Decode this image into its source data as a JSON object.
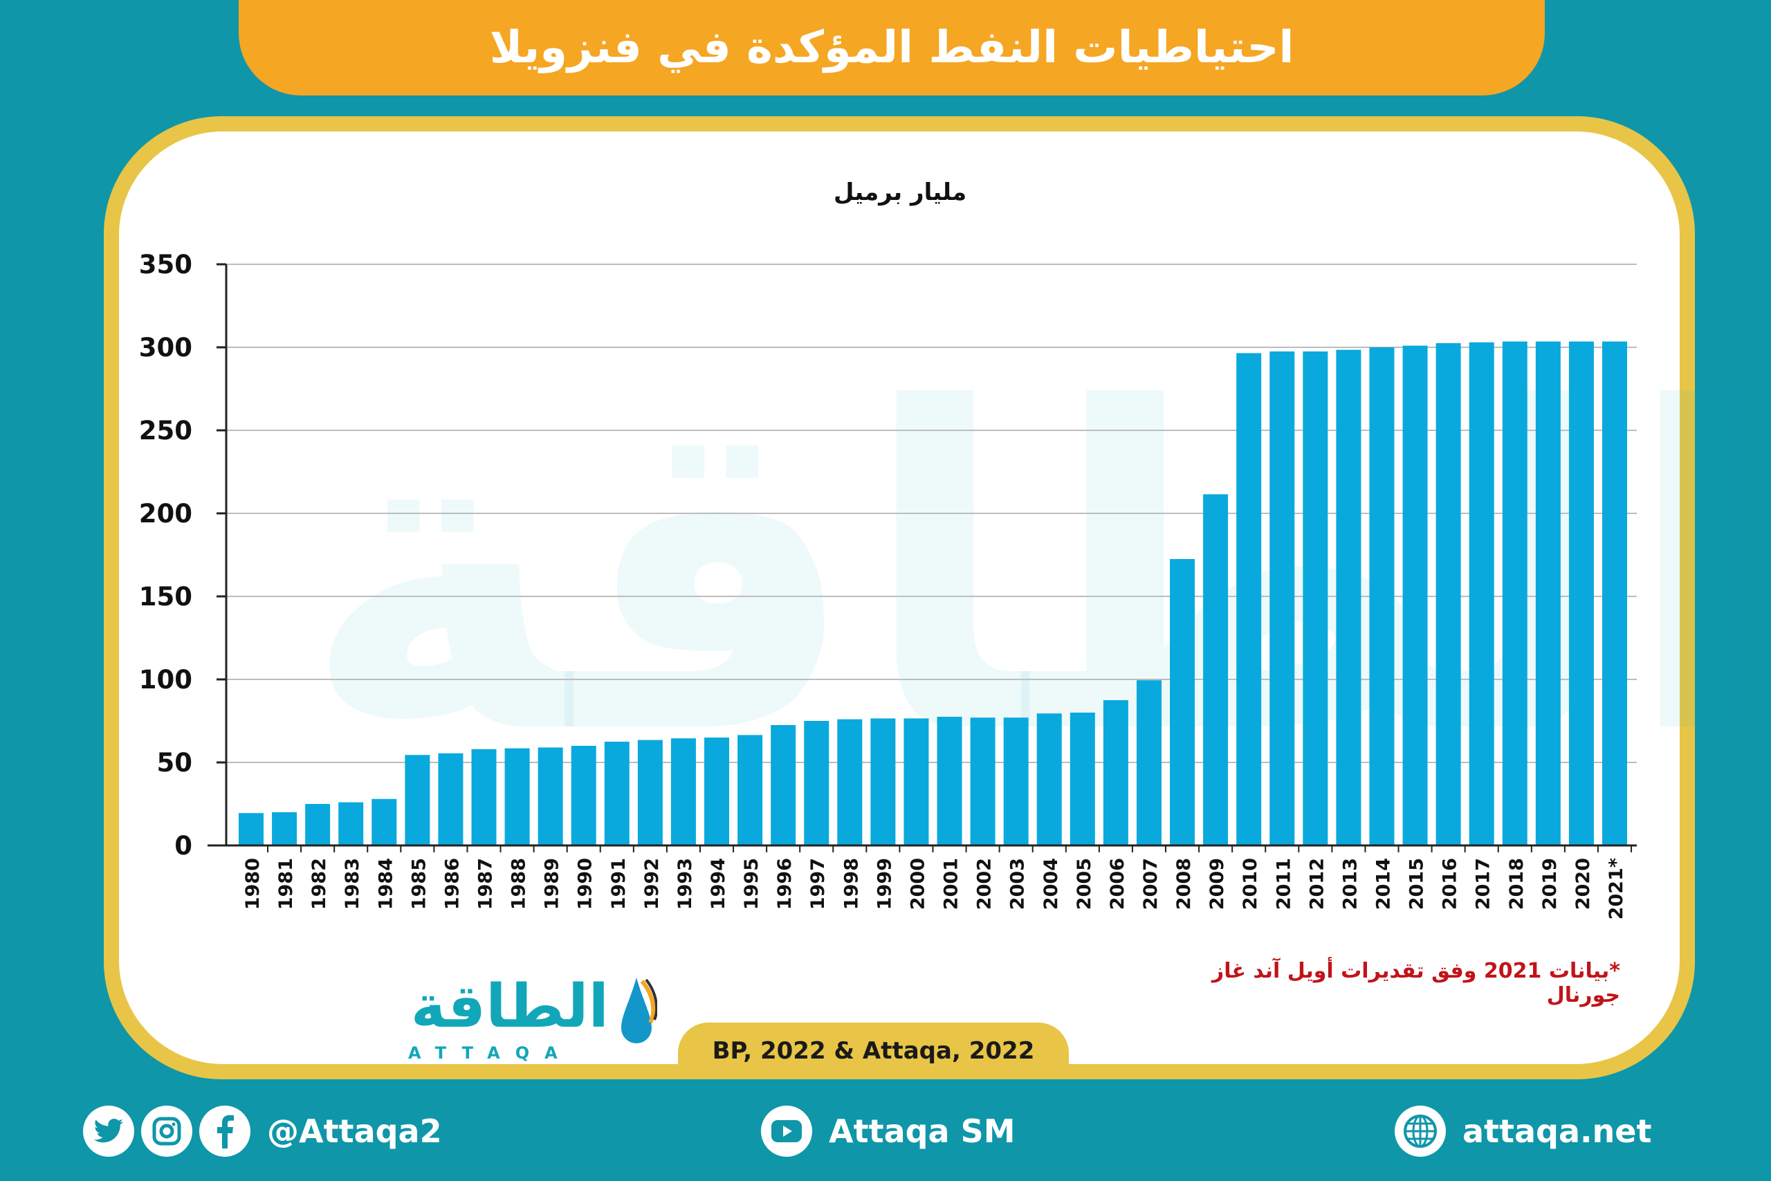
{
  "title": "احتياطيات النفط المؤكدة في فنزويلا",
  "unit_label": "مليار برميل",
  "footnote": "*بيانات 2021 وفق تقديرات أويل آند غاز جورنال",
  "source": "BP, 2022 & Attaqa, 2022",
  "logo": {
    "arabic": "الطاقة",
    "latin": "ATTAQA"
  },
  "footer": {
    "social_handle": "@Attaqa2",
    "youtube": "Attaqa SM",
    "website": "attaqa.net",
    "icons": [
      "twitter-icon",
      "instagram-icon",
      "facebook-icon",
      "youtube-icon",
      "globe-icon"
    ]
  },
  "colors": {
    "background": "#0f96a9",
    "banner": "#f5a623",
    "border": "#e8c547",
    "bar": "#0aa9dd",
    "footnote": "#c0141a"
  },
  "chart_data": {
    "type": "bar",
    "ylabel": "مليار برميل",
    "ylim": [
      0,
      350
    ],
    "yticks": [
      0,
      50,
      100,
      150,
      200,
      250,
      300,
      350
    ],
    "grid": true,
    "categories": [
      "1980",
      "1981",
      "1982",
      "1983",
      "1984",
      "1985",
      "1986",
      "1987",
      "1988",
      "1989",
      "1990",
      "1991",
      "1992",
      "1993",
      "1994",
      "1995",
      "1996",
      "1997",
      "1998",
      "1999",
      "2000",
      "2001",
      "2002",
      "2003",
      "2004",
      "2005",
      "2006",
      "2007",
      "2008",
      "2009",
      "2010",
      "2011",
      "2012",
      "2013",
      "2014",
      "2015",
      "2016",
      "2017",
      "2018",
      "2019",
      "2020",
      "2021*"
    ],
    "values": [
      19.5,
      20,
      25,
      26,
      28,
      54.5,
      55.5,
      58,
      58.5,
      59,
      60,
      62.5,
      63.5,
      64.5,
      65,
      66.5,
      72.5,
      75,
      76,
      76.5,
      76.5,
      77.5,
      77,
      77,
      79.5,
      80,
      87.5,
      99.5,
      172.5,
      211.5,
      296.5,
      297.5,
      297.5,
      298.5,
      300,
      301,
      302.5,
      303,
      303.5,
      303.5,
      303.5,
      303.5
    ]
  }
}
